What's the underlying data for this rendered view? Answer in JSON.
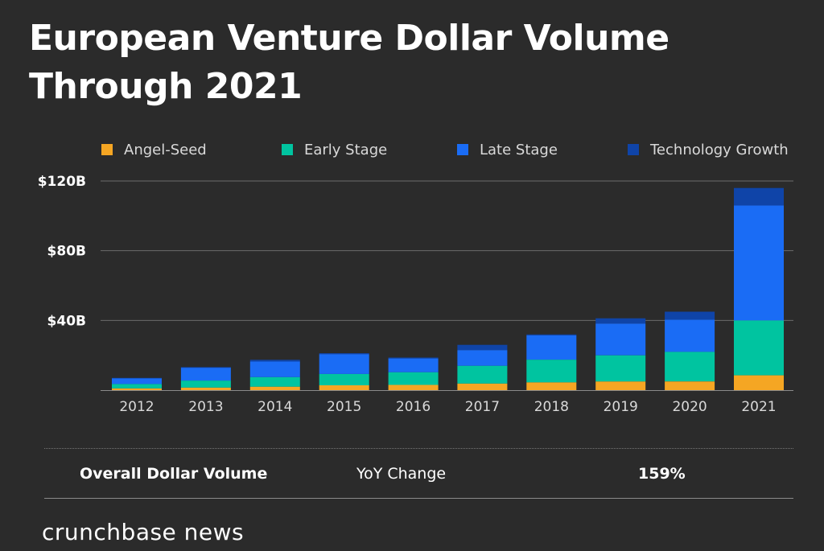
{
  "title_line1": "European Venture Dollar Volume",
  "title_line2": "Through 2021",
  "chart_data": {
    "type": "bar",
    "stacked": true,
    "title": "European Venture Dollar Volume Through 2021",
    "xlabel": "",
    "ylabel": "",
    "ylim": [
      0,
      120
    ],
    "yticks": [
      40,
      80,
      120
    ],
    "ytick_labels": [
      "$40B",
      "$80B",
      "$120B"
    ],
    "grid": true,
    "legend_position": "top",
    "categories": [
      "2012",
      "2013",
      "2014",
      "2015",
      "2016",
      "2017",
      "2018",
      "2019",
      "2020",
      "2021"
    ],
    "series": [
      {
        "name": "Angel-Seed",
        "color": "#f5a623",
        "values": [
          1,
          1.5,
          2,
          2.8,
          3,
          3.8,
          4.5,
          5,
          5,
          8.5
        ]
      },
      {
        "name": "Early Stage",
        "color": "#00c4a0",
        "values": [
          2.5,
          4,
          5.5,
          6.5,
          7.3,
          10.2,
          13,
          15,
          17,
          31.5
        ]
      },
      {
        "name": "Late Stage",
        "color": "#1a6cf5",
        "values": [
          3.2,
          7.4,
          8.9,
          11.4,
          7.9,
          9,
          14,
          18.2,
          18.5,
          66
        ]
      },
      {
        "name": "Technology Growth",
        "color": "#0f44a8",
        "values": [
          0.3,
          0.3,
          1,
          0.5,
          0.5,
          3,
          0.5,
          3,
          4.5,
          10
        ]
      }
    ]
  },
  "summary": {
    "label": "Overall Dollar Volume",
    "metric": "YoY Change",
    "value": "159%"
  },
  "brand": "crunchbase news",
  "colors": {
    "background": "#2b2b2b",
    "gridline": "#6b6b6b",
    "axis": "#8a8a8a"
  }
}
